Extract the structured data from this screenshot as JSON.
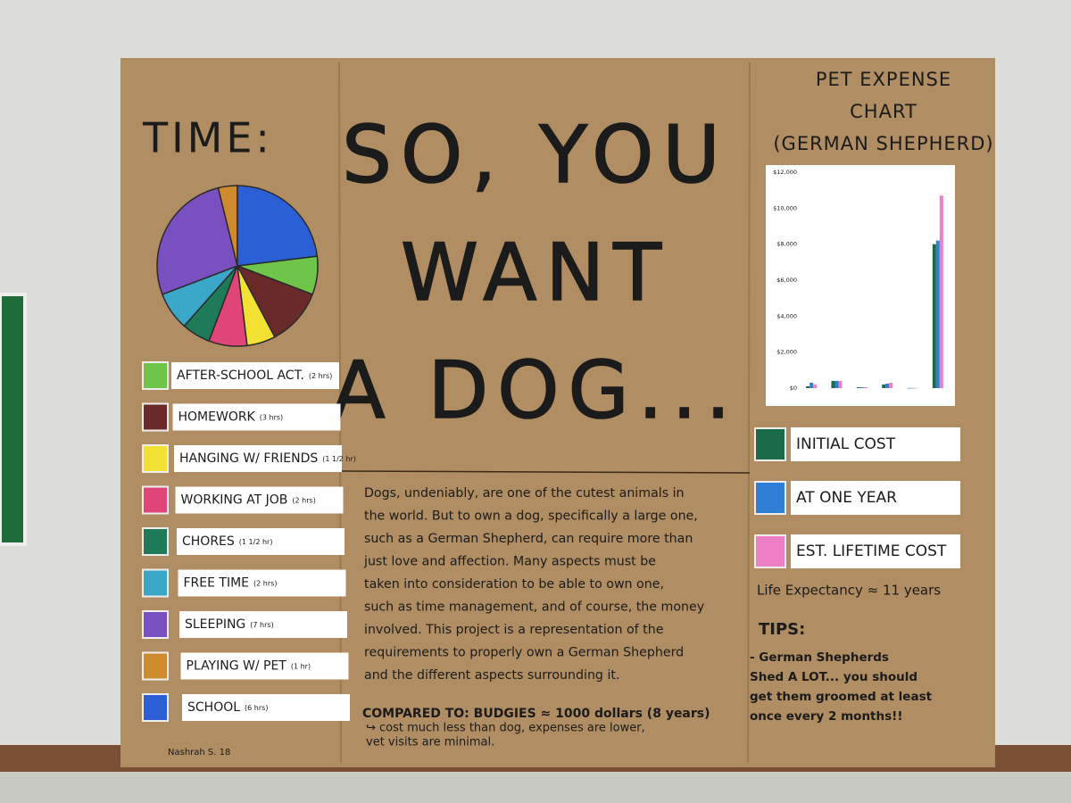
{
  "poster": {
    "time_heading": "TIME:",
    "title_lines": [
      "SO, YOU",
      "WANT",
      "A DOG..."
    ],
    "chart_heading_lines": [
      "PET EXPENSE",
      "CHART",
      "(GERMAN SHEPHERD)"
    ],
    "paragraph_lines": [
      "Dogs, undeniably, are one of the cutest animals in",
      "the world. But to own a dog, specifically a large one,",
      "such as a German Shepherd, can require more than",
      "just love and affection. Many aspects must be",
      "taken into consideration to be able to own one,",
      "such as time management, and of course, the money",
      "involved. This project is a representation of the",
      "requirements to properly own a German Shepherd",
      "and the different aspects surrounding it."
    ],
    "compared_lines": [
      "COMPARED TO: BUDGIES ≈ 1000 dollars (8 years)",
      "↪ cost much less than dog, expenses are lower,",
      "vet visits are minimal."
    ],
    "life_expectancy": "Life Expectancy ≈ 11 years",
    "tips_heading": "TIPS:",
    "tips_lines": [
      "- German Shepherds",
      "Shed A LOT... you should",
      "get them groomed at least",
      "once every 2 months!!"
    ],
    "signature": "Nashrah S. 18"
  },
  "chart_data": [
    {
      "type": "pie",
      "categories": [
        "AFTER-SCHOOL ACT.",
        "HOMEWORK",
        "HANGING W/ FRIENDS",
        "WORKING AT JOB",
        "CHORES",
        "FREE TIME",
        "SLEEPING",
        "PLAYING W/ PET",
        "SCHOOL"
      ],
      "values": [
        2,
        3,
        1.5,
        2,
        1.5,
        2,
        7,
        1,
        6
      ],
      "value_labels": [
        "(2 hrs)",
        "(3 hrs)",
        "(1 1/2 hr)",
        "(2 hrs)",
        "(1 1/2 hr)",
        "(2 hrs)",
        "(7 hrs)",
        "(1 hr)",
        "(6 hrs)"
      ],
      "colors": [
        "#6fc54a",
        "#6b2a2a",
        "#f2e033",
        "#e0457a",
        "#1f7a5a",
        "#3aa7c9",
        "#7a4fc0",
        "#d08a2e",
        "#2a5fd6"
      ]
    },
    {
      "type": "bar",
      "categories": [
        null,
        null,
        null,
        null,
        null,
        null
      ],
      "series": [
        {
          "name": "INITIAL COST",
          "color": "#1a6b4a",
          "values": [
            100,
            400,
            50,
            200,
            10,
            8000
          ]
        },
        {
          "name": "AT ONE YEAR",
          "color": "#2f7fd6",
          "values": [
            300,
            400,
            50,
            250,
            10,
            8200
          ]
        },
        {
          "name": "EST. LIFETIME COST",
          "color": "#ec7fc6",
          "values": [
            200,
            400,
            50,
            300,
            10,
            10700
          ]
        }
      ],
      "ylim": [
        0,
        12000
      ],
      "yticks": [
        {
          "value": 0,
          "label": "$0"
        },
        {
          "value": 2000,
          "label": "$2,000"
        },
        {
          "value": 4000,
          "label": "$4,000"
        },
        {
          "value": 6000,
          "label": "$6,000"
        },
        {
          "value": 8000,
          "label": "$8,000"
        },
        {
          "value": 10000,
          "label": "$10,000"
        },
        {
          "value": 12000,
          "label": "$12,000"
        }
      ],
      "grid": false
    }
  ]
}
